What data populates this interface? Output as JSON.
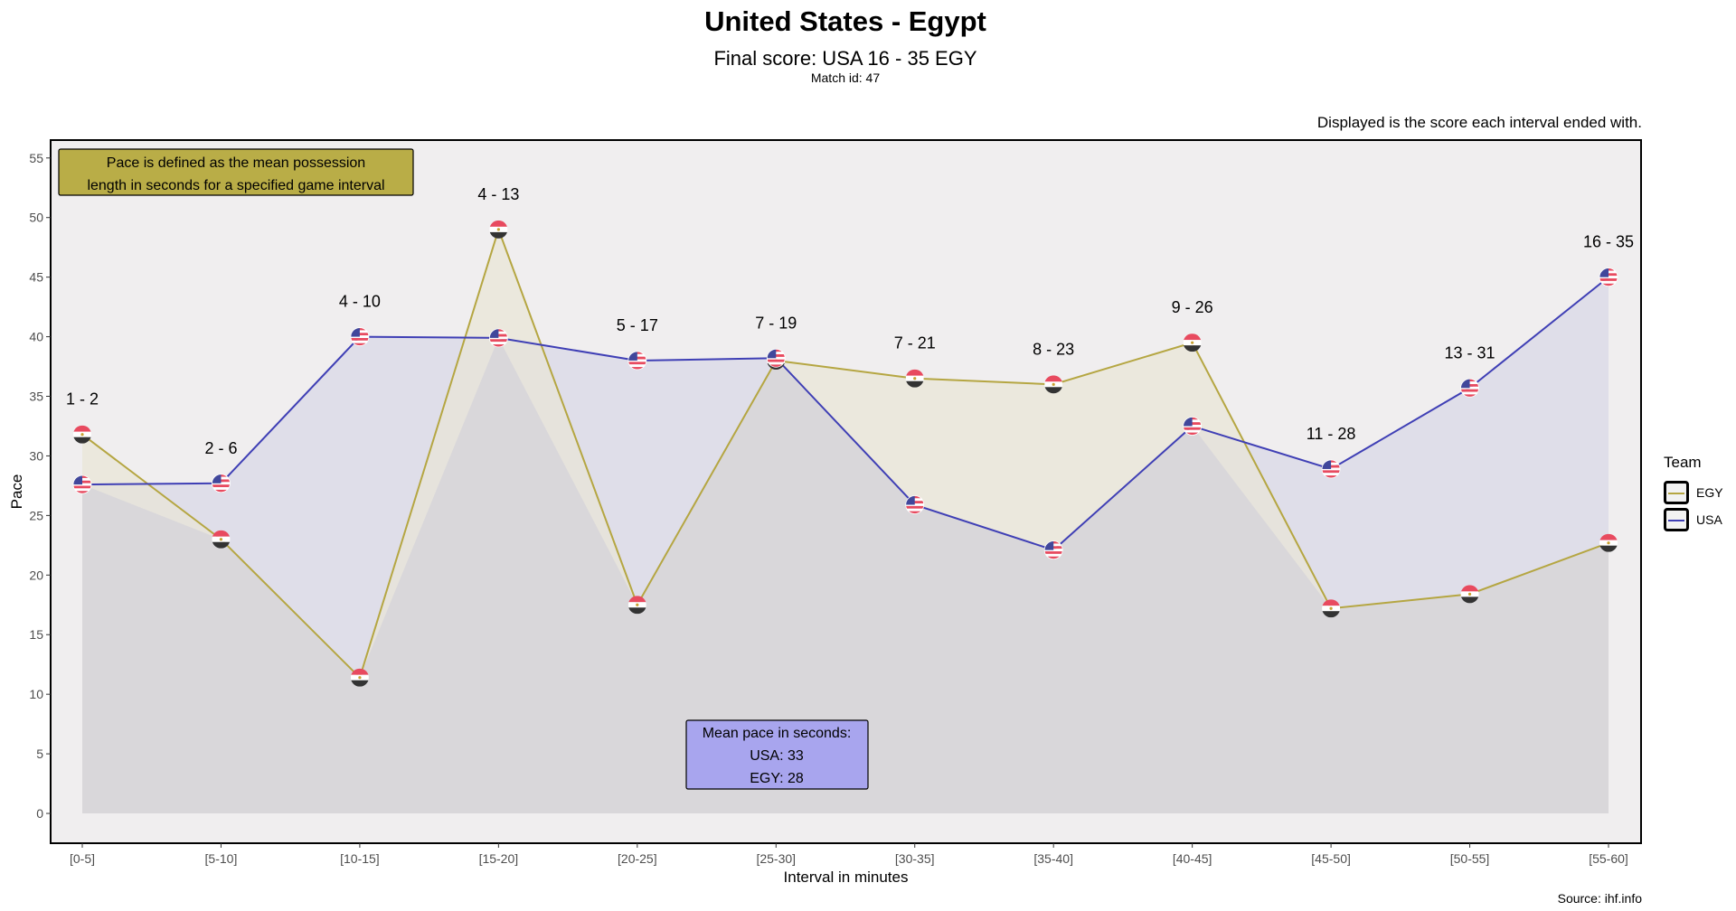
{
  "header": {
    "title": "United States - Egypt",
    "subtitle": "Final score: USA 16 - 35 EGY",
    "match_id": "Match id: 47",
    "note": "Displayed is the score each interval ended with.",
    "source": "Source: ihf.info"
  },
  "annotations": {
    "pace_definition": [
      "Pace is defined as the mean possession",
      "length in seconds for a specified game interval"
    ],
    "mean_pace": [
      "Mean pace in seconds:",
      "USA: 33",
      "EGY: 28"
    ]
  },
  "legend": {
    "title": "Team",
    "items": [
      {
        "label": "EGY",
        "color": "#b5a642"
      },
      {
        "label": "USA",
        "color": "#3f3fb5"
      }
    ]
  },
  "colors": {
    "panel_bg": "#f0eeef",
    "egy_line": "#b5a642",
    "usa_line": "#3f3fb5",
    "egy_fill": "#e8e6d6",
    "usa_fill": "#dcdae8",
    "base_fill": "#d9d7da",
    "pace_box": "#b9ad47",
    "mean_box": "#a8a5ee"
  },
  "chart_data": {
    "type": "area",
    "xlabel": "Interval in minutes",
    "ylabel": "Pace",
    "ylim": [
      -2.5,
      56.5
    ],
    "yticks": [
      0,
      5,
      10,
      15,
      20,
      25,
      30,
      35,
      40,
      45,
      50,
      55
    ],
    "grid": false,
    "legend_position": "right",
    "categories": [
      "[0-5]",
      "[5-10]",
      "[10-15]",
      "[15-20]",
      "[20-25]",
      "[25-30]",
      "[30-35]",
      "[35-40]",
      "[40-45]",
      "[45-50]",
      "[50-55]",
      "[55-60]"
    ],
    "scores": [
      "1 - 2",
      "2 - 6",
      "4 - 10",
      "4 - 13",
      "5 - 17",
      "7 - 19",
      "7 - 21",
      "8 - 23",
      "9 - 26",
      "11 - 28",
      "13 - 31",
      "16 - 35"
    ],
    "series": [
      {
        "name": "EGY",
        "values": [
          31.8,
          23.0,
          11.4,
          49.0,
          17.5,
          38.0,
          36.5,
          36.0,
          39.5,
          17.2,
          18.4,
          22.7
        ]
      },
      {
        "name": "USA",
        "values": [
          27.6,
          27.7,
          40.0,
          39.9,
          38.0,
          38.2,
          25.9,
          22.1,
          32.5,
          28.9,
          35.7,
          45.0
        ]
      }
    ]
  }
}
